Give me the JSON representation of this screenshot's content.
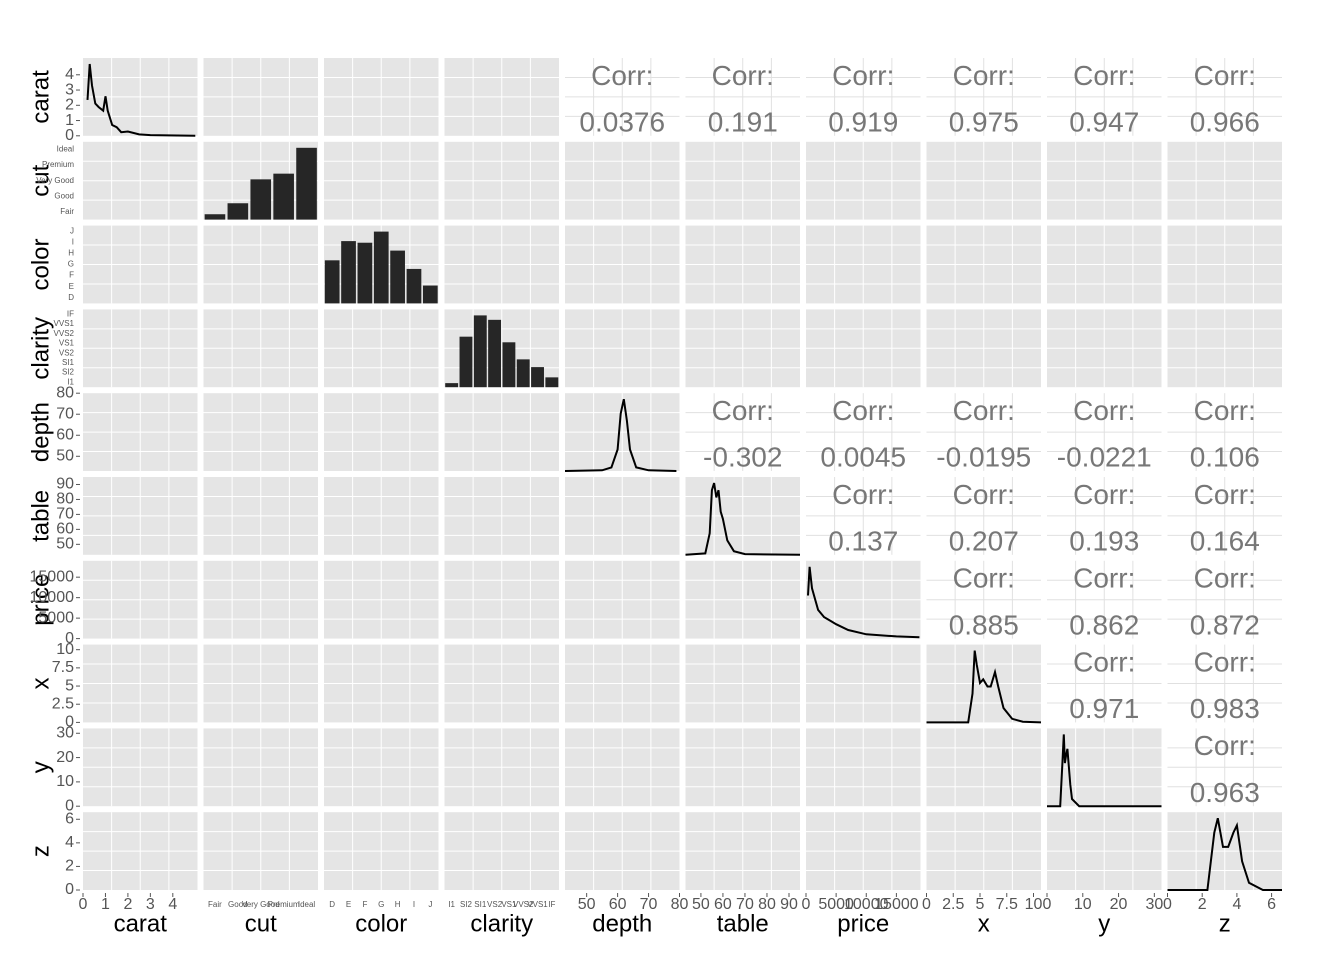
{
  "chart_data": {
    "type": "pairs",
    "corr_label": "Corr:",
    "variables": [
      {
        "name": "carat",
        "kind": "numeric",
        "lim": [
          0,
          5.1
        ],
        "ticks": [
          0,
          1,
          2,
          3,
          4
        ],
        "density": {
          "x": [
            0.2,
            0.3,
            0.4,
            0.55,
            0.7,
            0.9,
            1.0,
            1.1,
            1.3,
            1.5,
            1.7,
            2,
            2.5,
            3,
            5
          ],
          "y": [
            0.5,
            1,
            0.7,
            0.45,
            0.4,
            0.35,
            0.55,
            0.35,
            0.15,
            0.12,
            0.05,
            0.06,
            0.02,
            0.01,
            0
          ]
        },
        "corr": [
          0.0376,
          0.191,
          0.919,
          0.975,
          0.947,
          0.966
        ]
      },
      {
        "name": "cut",
        "kind": "categorical",
        "categories": [
          "Fair",
          "Good",
          "Very Good",
          "Premium",
          "Ideal"
        ],
        "counts": [
          1610,
          4906,
          12082,
          13791,
          21551
        ]
      },
      {
        "name": "color",
        "kind": "categorical",
        "categories": [
          "D",
          "E",
          "F",
          "G",
          "H",
          "I",
          "J"
        ],
        "counts": [
          6775,
          9797,
          9542,
          11292,
          8304,
          5422,
          2808
        ]
      },
      {
        "name": "clarity",
        "kind": "categorical",
        "categories": [
          "I1",
          "SI2",
          "SI1",
          "VS2",
          "VS1",
          "VVS2",
          "VVS1",
          "IF"
        ],
        "counts": [
          741,
          9194,
          13065,
          12258,
          8171,
          5066,
          3655,
          1790
        ]
      },
      {
        "name": "depth",
        "kind": "numeric",
        "lim": [
          43,
          80
        ],
        "ticks": [
          50,
          60,
          70,
          80
        ],
        "density": {
          "x": [
            43,
            55,
            58,
            60,
            61,
            62,
            63,
            64,
            66,
            70,
            79
          ],
          "y": [
            0,
            0.01,
            0.05,
            0.3,
            0.8,
            1,
            0.7,
            0.3,
            0.05,
            0.01,
            0
          ]
        },
        "corr": [
          -0.302,
          0.0045,
          -0.0195,
          -0.0221,
          0.106
        ]
      },
      {
        "name": "table",
        "kind": "numeric",
        "lim": [
          43,
          95
        ],
        "ticks": [
          50,
          60,
          70,
          80,
          90
        ],
        "density": {
          "x": [
            43,
            52,
            54,
            55,
            56,
            57,
            58,
            59,
            60,
            62,
            65,
            70,
            95
          ],
          "y": [
            0,
            0.02,
            0.3,
            0.9,
            1,
            0.8,
            0.9,
            0.6,
            0.5,
            0.2,
            0.05,
            0.01,
            0
          ]
        },
        "corr": [
          0.137,
          0.207,
          0.193,
          0.164
        ]
      },
      {
        "name": "price",
        "kind": "numeric",
        "lim": [
          0,
          19000
        ],
        "ticks": [
          0,
          5000,
          10000,
          15000
        ],
        "density": {
          "x": [
            326,
            600,
            1000,
            2000,
            3000,
            4000,
            5000,
            7000,
            10000,
            15000,
            18823
          ],
          "y": [
            0.6,
            1,
            0.7,
            0.4,
            0.3,
            0.25,
            0.2,
            0.12,
            0.06,
            0.03,
            0.02
          ]
        },
        "corr": [
          0.885,
          0.862,
          0.872
        ]
      },
      {
        "name": "x",
        "kind": "numeric",
        "lim": [
          0,
          10.7
        ],
        "ticks": [
          0,
          2.5,
          5,
          7.5,
          10
        ],
        "density": {
          "x": [
            0,
            3.9,
            4.3,
            4.5,
            4.7,
            5.0,
            5.3,
            5.7,
            6.0,
            6.4,
            6.7,
            7.2,
            8,
            9,
            10.7
          ],
          "y": [
            0,
            0,
            0.4,
            1,
            0.8,
            0.55,
            0.6,
            0.5,
            0.5,
            0.7,
            0.5,
            0.2,
            0.05,
            0.01,
            0
          ]
        },
        "corr": [
          0.971,
          0.983
        ]
      },
      {
        "name": "y",
        "kind": "numeric",
        "lim": [
          0,
          32
        ],
        "ticks": [
          0,
          10,
          20,
          30
        ],
        "density": {
          "x": [
            0,
            3.7,
            4.3,
            4.7,
            5,
            5.3,
            5.7,
            6.5,
            7,
            9,
            32
          ],
          "y": [
            0,
            0,
            0.6,
            1,
            0.6,
            0.7,
            0.8,
            0.3,
            0.1,
            0,
            0
          ]
        },
        "corr": [
          0.963
        ]
      },
      {
        "name": "z",
        "kind": "numeric",
        "lim": [
          0,
          6.6
        ],
        "ticks": [
          0,
          2,
          4,
          6
        ],
        "density": {
          "x": [
            0,
            2.3,
            2.7,
            2.9,
            3.2,
            3.5,
            3.8,
            4.0,
            4.3,
            4.7,
            5.5,
            6.6
          ],
          "y": [
            0,
            0,
            0.8,
            1,
            0.6,
            0.6,
            0.8,
            0.9,
            0.4,
            0.1,
            0,
            0
          ]
        }
      }
    ]
  }
}
